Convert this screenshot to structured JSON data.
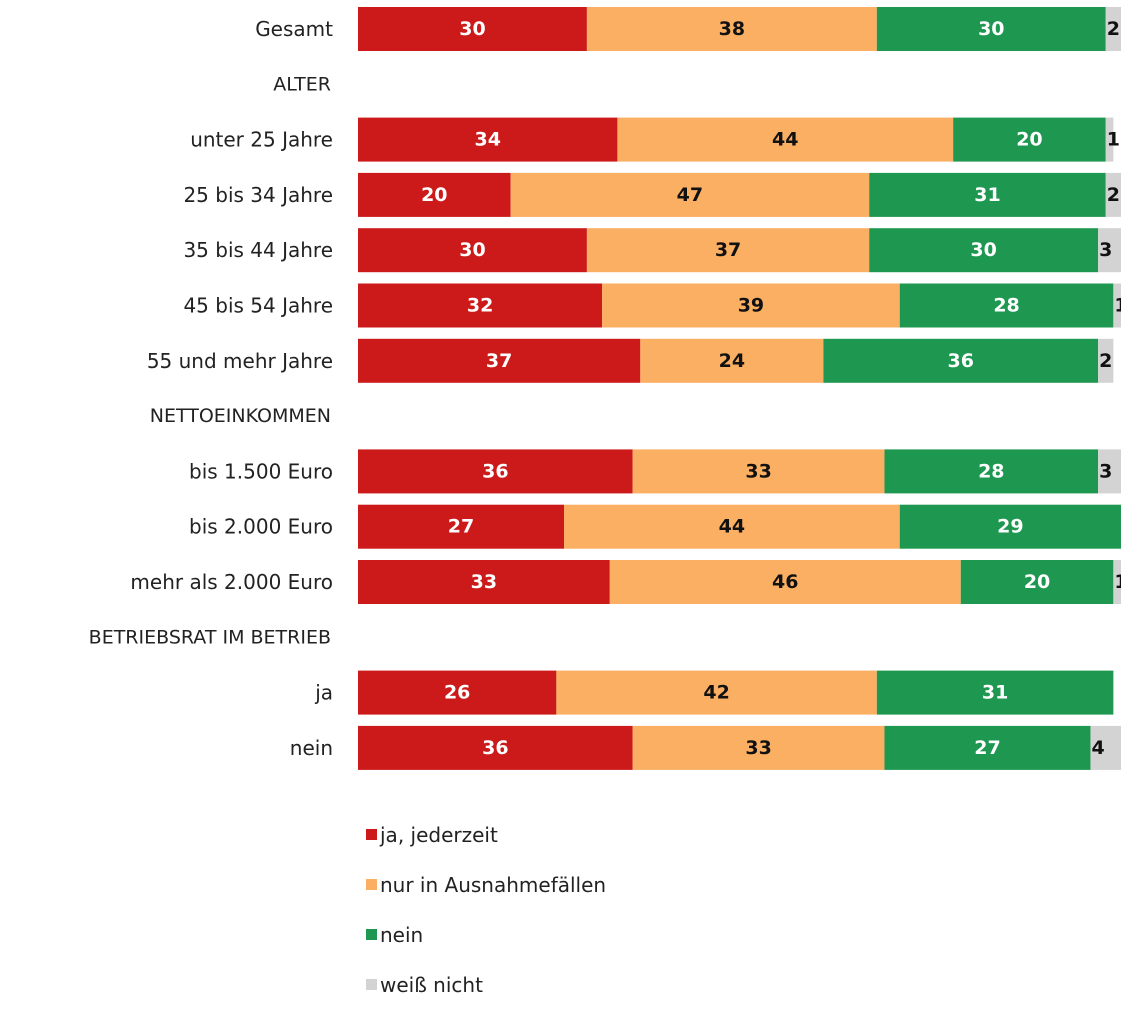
{
  "chart_data": {
    "type": "bar",
    "orientation": "horizontal",
    "stacked": true,
    "xlim": [
      0,
      100
    ],
    "rows": [
      {
        "kind": "category",
        "label": "Gesamt",
        "values": [
          30,
          38,
          30,
          2
        ]
      },
      {
        "kind": "group",
        "label": "ALTER"
      },
      {
        "kind": "category",
        "label": "unter 25 Jahre",
        "values": [
          34,
          44,
          20,
          1
        ]
      },
      {
        "kind": "category",
        "label": "25 bis 34 Jahre",
        "values": [
          20,
          47,
          31,
          2
        ]
      },
      {
        "kind": "category",
        "label": "35 bis 44 Jahre",
        "values": [
          30,
          37,
          30,
          3
        ]
      },
      {
        "kind": "category",
        "label": "45 bis 54 Jahre",
        "values": [
          32,
          39,
          28,
          1
        ]
      },
      {
        "kind": "category",
        "label": "55 und mehr Jahre",
        "values": [
          37,
          24,
          36,
          2
        ]
      },
      {
        "kind": "group",
        "label": "NETTOEINKOMMEN"
      },
      {
        "kind": "category",
        "label": "bis 1.500 Euro",
        "values": [
          36,
          33,
          28,
          3
        ]
      },
      {
        "kind": "category",
        "label": "bis 2.000 Euro",
        "values": [
          27,
          44,
          29,
          0
        ]
      },
      {
        "kind": "category",
        "label": "mehr als 2.000 Euro",
        "values": [
          33,
          46,
          20,
          1
        ]
      },
      {
        "kind": "group",
        "label": "BETRIEBSRAT IM BETRIEB"
      },
      {
        "kind": "category",
        "label": "ja",
        "values": [
          26,
          42,
          31,
          0
        ]
      },
      {
        "kind": "category",
        "label": "nein",
        "values": [
          36,
          33,
          27,
          4
        ]
      }
    ],
    "series": [
      {
        "name": "ja, jederzeit",
        "color": "#cc1a1a",
        "label_color": "#ffffff"
      },
      {
        "name": "nur in Ausnahmefällen",
        "color": "#fbaf62",
        "label_color": "#111111"
      },
      {
        "name": "nein",
        "color": "#1e9850",
        "label_color": "#ffffff"
      },
      {
        "name": "weiß nicht",
        "color": "#d3d3d3",
        "label_color": "#111111"
      }
    ],
    "legend_position": "bottom"
  }
}
